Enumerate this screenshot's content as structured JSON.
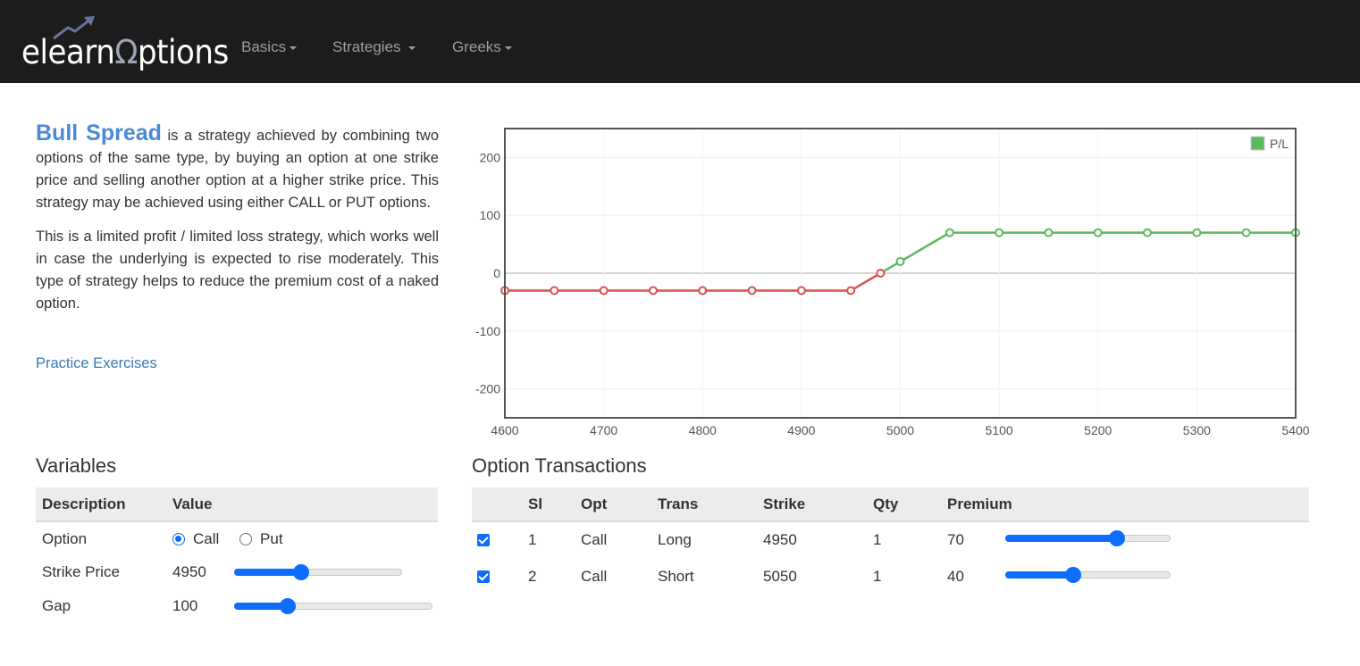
{
  "nav": {
    "brand": {
      "pre": "elearn",
      "hl": "Ω",
      "post": "ptions"
    },
    "items": [
      {
        "label": "Basics"
      },
      {
        "label": "Strategies"
      },
      {
        "label": "Greeks"
      }
    ]
  },
  "intro": {
    "term": "Bull Spread",
    "p1": " is a strategy achieved by combining two options of the same type, by buying an option at one strike price and selling another option at a higher strike price. This strategy may be achieved using either CALL or PUT options.",
    "p2": "This is a limited profit / limited loss strategy, which works well in case the underlying is expected to rise moderately. This type of strategy helps to reduce the premium cost of a naked option.",
    "link": "Practice Exercises"
  },
  "chart_data": {
    "type": "line",
    "series": [
      {
        "name": "P/L",
        "points": [
          [
            4600,
            -30
          ],
          [
            4650,
            -30
          ],
          [
            4700,
            -30
          ],
          [
            4750,
            -30
          ],
          [
            4800,
            -30
          ],
          [
            4850,
            -30
          ],
          [
            4900,
            -30
          ],
          [
            4950,
            -30
          ],
          [
            4980,
            0
          ],
          [
            5000,
            20
          ],
          [
            5050,
            70
          ],
          [
            5100,
            70
          ],
          [
            5150,
            70
          ],
          [
            5200,
            70
          ],
          [
            5250,
            70
          ],
          [
            5300,
            70
          ],
          [
            5350,
            70
          ],
          [
            5400,
            70
          ]
        ]
      }
    ],
    "xlim": [
      4600,
      5400
    ],
    "ylim": [
      -250,
      250
    ],
    "xticks": [
      4600,
      4700,
      4800,
      4900,
      5000,
      5100,
      5200,
      5300,
      5400
    ],
    "yticks": [
      200,
      100,
      0,
      -100,
      -200
    ],
    "legend": "top-right",
    "grid": true,
    "colors": {
      "profit": "#5cb85c",
      "loss": "#d9534f"
    }
  },
  "variables": {
    "title": "Variables",
    "headers": [
      "Description",
      "Value"
    ],
    "option_label": "Option",
    "call_label": "Call",
    "put_label": "Put",
    "selected": "Call",
    "strike_label": "Strike Price",
    "strike_value": "4950",
    "strike_level": 0.4,
    "gap_label": "Gap",
    "gap_value": "100",
    "gap_level": 0.27
  },
  "transactions": {
    "title": "Option Transactions",
    "headers": [
      "Sl",
      "Opt",
      "Trans",
      "Strike",
      "Qty",
      "Premium"
    ],
    "rows": [
      {
        "checked": true,
        "sl": "1",
        "opt": "Call",
        "trans": "Long",
        "strike": "4950",
        "qty": "1",
        "premium": "70",
        "level": 0.68
      },
      {
        "checked": true,
        "sl": "2",
        "opt": "Call",
        "trans": "Short",
        "strike": "5050",
        "qty": "1",
        "premium": "40",
        "level": 0.41
      }
    ]
  }
}
